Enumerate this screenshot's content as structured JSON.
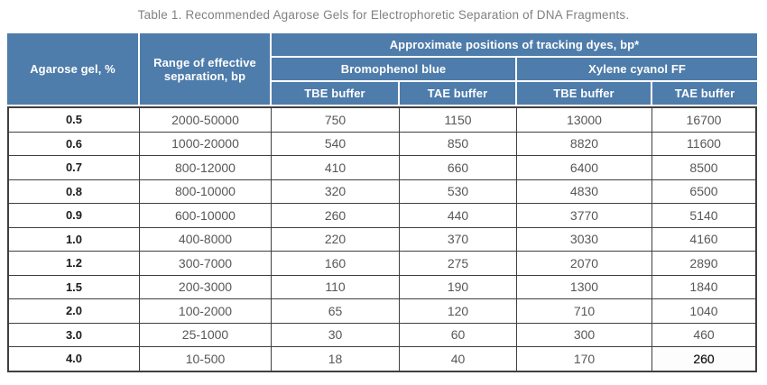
{
  "title": "Table 1. Recommended Agarose Gels for Electrophoretic Separation of DNA Fragments.",
  "colors": {
    "header_blue": "#4e7cab",
    "header_text": "#ffffff",
    "body_border": "#3f3f3f",
    "body_text": "#575757",
    "title_text": "#818181"
  },
  "table": {
    "headers": {
      "col_agarose": "Agarose gel, %",
      "col_range": "Range of effective separation, bp",
      "group_tracking": "Approximate positions of tracking dyes, bp*",
      "group_bromophenol": "Bromophenol blue",
      "group_xylene": "Xylene cyanol FF",
      "tbe_1": "TBE buffer",
      "tae_1": "TAE buffer",
      "tbe_2": "TBE buffer",
      "tae_2": "TAE buffer"
    },
    "rows": [
      [
        "0.5",
        "2000-50000",
        "750",
        "1150",
        "13000",
        "16700"
      ],
      [
        "0.6",
        "1000-20000",
        "540",
        "850",
        "8820",
        "11600"
      ],
      [
        "0.7",
        "800-12000",
        "410",
        "660",
        "6400",
        "8500"
      ],
      [
        "0.8",
        "800-10000",
        "320",
        "530",
        "4830",
        "6500"
      ],
      [
        "0.9",
        "600-10000",
        "260",
        "440",
        "3770",
        "5140"
      ],
      [
        "1.0",
        "400-8000",
        "220",
        "370",
        "3030",
        "4160"
      ],
      [
        "1.2",
        "300-7000",
        "160",
        "275",
        "2070",
        "2890"
      ],
      [
        "1.5",
        "200-3000",
        "110",
        "190",
        "1300",
        "1840"
      ],
      [
        "2.0",
        "100-2000",
        "65",
        "120",
        "710",
        "1040"
      ],
      [
        "3.0",
        "25-1000",
        "30",
        "60",
        "300",
        "460"
      ],
      [
        "4.0",
        "10-500",
        "18",
        "40",
        "170",
        "260"
      ]
    ],
    "highlight_cell": {
      "row": 10,
      "col": 5
    }
  }
}
